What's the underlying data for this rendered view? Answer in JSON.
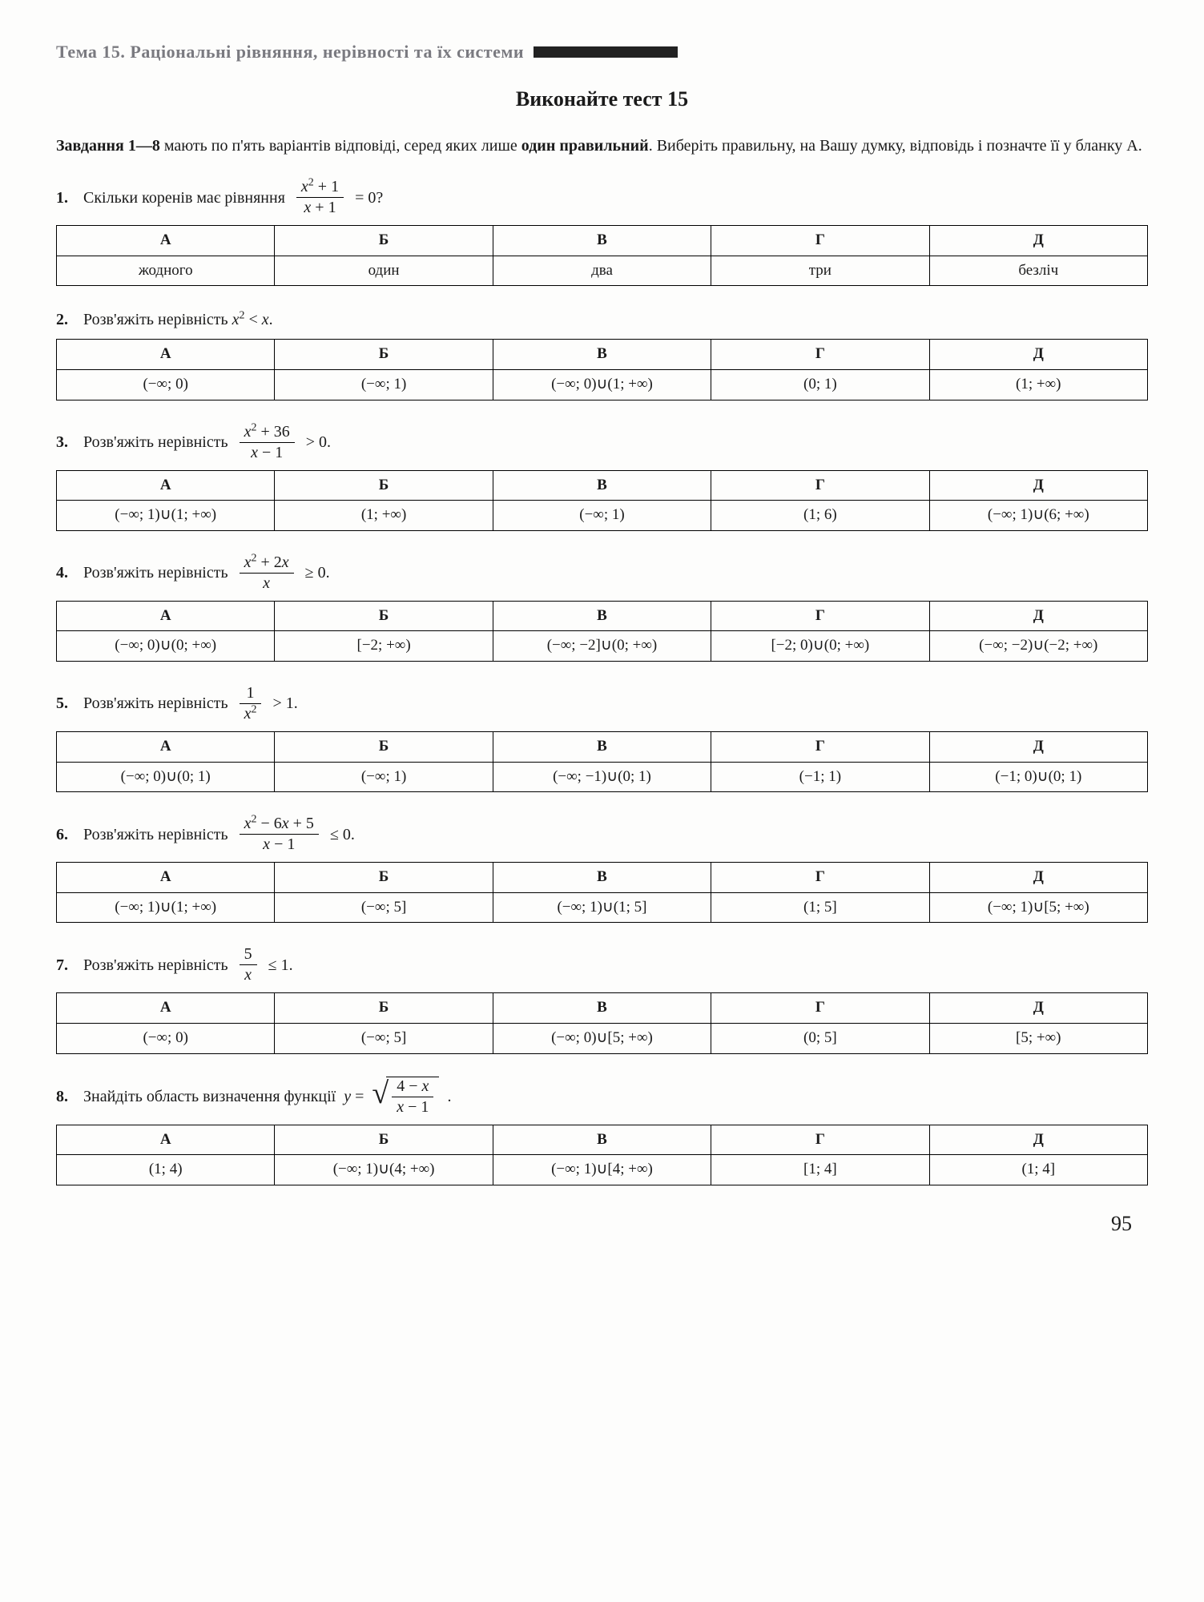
{
  "topic_text": "Тема 15. Раціональні рівняння, нерівності та їх системи",
  "test_title": "Виконайте тест 15",
  "instructions_prefix": "Завдання 1—8 ",
  "instructions_mid": "мають по п'ять варіантів відповіді, серед яких лише ",
  "instructions_bold": "один правильний",
  "instructions_suffix": ". Виберіть правильну, на Вашу думку, відповідь і позначте її у бланку А.",
  "headers": {
    "a": "А",
    "b": "Б",
    "v": "В",
    "g": "Г",
    "d": "Д"
  },
  "q1": {
    "num": "1.",
    "text_before": "Скільки коренів має рівняння ",
    "frac_num": "x² + 1",
    "frac_den": "x + 1",
    "text_after": " = 0?",
    "answers": {
      "a": "жодного",
      "b": "один",
      "v": "два",
      "g": "три",
      "d": "безліч"
    }
  },
  "q2": {
    "num": "2.",
    "text": "Розв'яжіть нерівність x² < x.",
    "answers": {
      "a": "(−∞; 0)",
      "b": "(−∞; 1)",
      "v": "(−∞; 0)∪(1; +∞)",
      "g": "(0; 1)",
      "d": "(1; +∞)"
    }
  },
  "q3": {
    "num": "3.",
    "text_before": "Розв'яжіть нерівність ",
    "frac_num": "x² + 36",
    "frac_den": "x − 1",
    "text_after": " > 0.",
    "answers": {
      "a": "(−∞; 1)∪(1; +∞)",
      "b": "(1; +∞)",
      "v": "(−∞; 1)",
      "g": "(1; 6)",
      "d": "(−∞; 1)∪(6; +∞)"
    }
  },
  "q4": {
    "num": "4.",
    "text_before": "Розв'яжіть нерівність ",
    "frac_num": "x² + 2x",
    "frac_den": "x",
    "text_after": " ≥ 0.",
    "answers": {
      "a": "(−∞; 0)∪(0; +∞)",
      "b": "[−2; +∞)",
      "v": "(−∞; −2]∪(0; +∞)",
      "g": "[−2; 0)∪(0; +∞)",
      "d": "(−∞; −2)∪(−2; +∞)"
    }
  },
  "q5": {
    "num": "5.",
    "text_before": "Розв'яжіть нерівність ",
    "frac_num": "1",
    "frac_den": "x²",
    "text_after": " > 1.",
    "answers": {
      "a": "(−∞; 0)∪(0; 1)",
      "b": "(−∞; 1)",
      "v": "(−∞; −1)∪(0; 1)",
      "g": "(−1; 1)",
      "d": "(−1; 0)∪(0; 1)"
    }
  },
  "q6": {
    "num": "6.",
    "text_before": "Розв'яжіть нерівність ",
    "frac_num": "x² − 6x + 5",
    "frac_den": "x − 1",
    "text_after": " ≤ 0.",
    "answers": {
      "a": "(−∞; 1)∪(1; +∞)",
      "b": "(−∞; 5]",
      "v": "(−∞; 1)∪(1; 5]",
      "g": "(1; 5]",
      "d": "(−∞; 1)∪[5; +∞)"
    }
  },
  "q7": {
    "num": "7.",
    "text_before": "Розв'яжіть нерівність ",
    "frac_num": "5",
    "frac_den": "x",
    "text_after": " ≤ 1.",
    "answers": {
      "a": "(−∞; 0)",
      "b": "(−∞; 5]",
      "v": "(−∞; 0)∪[5; +∞)",
      "g": "(0; 5]",
      "d": "[5; +∞)"
    }
  },
  "q8": {
    "num": "8.",
    "text_before": "Знайдіть область визначення функції ",
    "y_eq": "y = ",
    "frac_num": "4 − x",
    "frac_den": "x − 1",
    "text_after": ".",
    "answers": {
      "a": "(1; 4)",
      "b": "(−∞; 1)∪(4; +∞)",
      "v": "(−∞; 1)∪[4; +∞)",
      "g": "[1; 4]",
      "d": "(1; 4]"
    }
  },
  "page_number": "95"
}
